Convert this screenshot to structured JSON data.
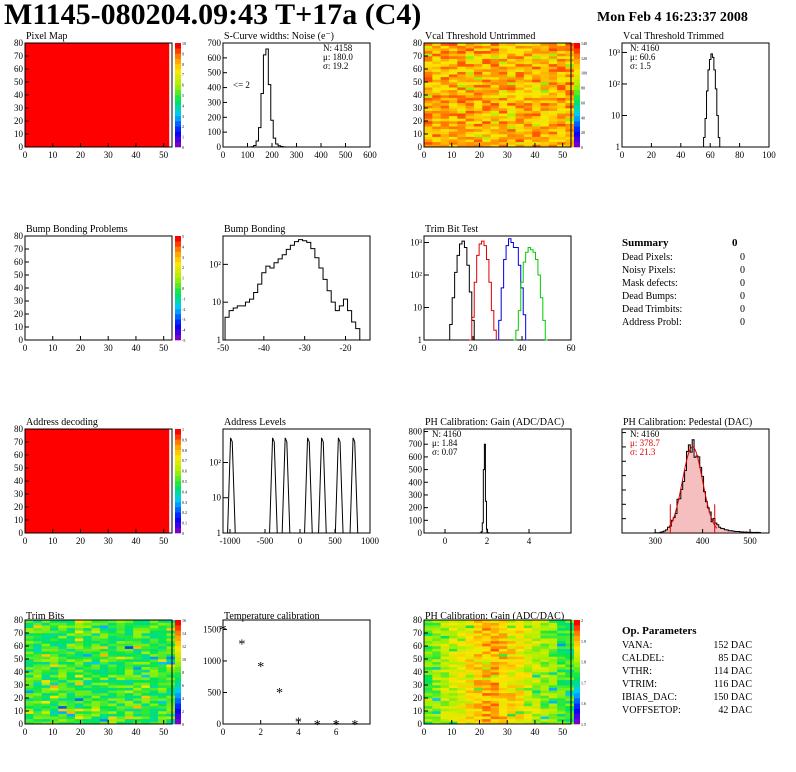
{
  "page": {
    "title": "M1145-080204.09:43 T+17a (C4)",
    "date": "Mon Feb  4 16:23:37 2008"
  },
  "colors": {
    "red": "#ff0000",
    "hist_line": "#000000",
    "trim_red": "#e00000",
    "trim_blue": "#0000e0",
    "trim_green": "#00cc00",
    "fit_red": "#dd0000"
  },
  "chart_data": [
    {
      "id": "pixel_map",
      "type": "heatmap",
      "title": "Pixel Map",
      "fill": "uniform-max",
      "x_ticks": [
        "0",
        "10",
        "20",
        "30",
        "40",
        "50"
      ],
      "y_ticks": [
        "0",
        "10",
        "20",
        "30",
        "40",
        "50",
        "60",
        "70",
        "80"
      ],
      "z_ticks": [
        "0",
        "1",
        "2",
        "3",
        "4",
        "5",
        "6",
        "7",
        "8",
        "9",
        "10"
      ]
    },
    {
      "id": "scurve",
      "type": "histogram",
      "title": "S-Curve widths: Noise (e⁻)",
      "x_ticks": [
        "0",
        "100",
        "200",
        "300",
        "400",
        "500",
        "600"
      ],
      "y_ticks": [
        "0",
        "100",
        "200",
        "300",
        "400",
        "500",
        "600",
        "700"
      ],
      "xlim": [
        0,
        600
      ],
      "ylim": [
        0,
        700
      ],
      "x": [
        120,
        130,
        140,
        150,
        160,
        170,
        180,
        190,
        200,
        210,
        220,
        230,
        240,
        250
      ],
      "values": [
        2,
        10,
        40,
        130,
        360,
        620,
        660,
        420,
        180,
        60,
        20,
        8,
        3,
        1
      ],
      "stats": [
        "N: 4158",
        "μ: 180.0",
        "σ: 19.2"
      ],
      "annotation": "<= 2"
    },
    {
      "id": "vcal_untrimmed",
      "type": "heatmap",
      "title": "Vcal Threshold Untrimmed",
      "fill": "noisy-orange",
      "x_ticks": [
        "0",
        "10",
        "20",
        "30",
        "40",
        "50"
      ],
      "y_ticks": [
        "0",
        "10",
        "20",
        "30",
        "40",
        "50",
        "60",
        "70",
        "80"
      ],
      "z_ticks": [
        "0",
        "20",
        "40",
        "60",
        "80",
        "100",
        "120",
        "140"
      ]
    },
    {
      "id": "vcal_trimmed",
      "type": "histogram",
      "title": "Vcal Threshold Trimmed",
      "log_y": true,
      "x_ticks": [
        "0",
        "20",
        "40",
        "60",
        "80",
        "100"
      ],
      "y_ticks": [
        "1",
        "10",
        "10²",
        "10³"
      ],
      "xlim": [
        0,
        100
      ],
      "x": [
        56,
        57,
        58,
        59,
        60,
        61,
        62,
        63,
        64,
        65,
        66,
        67
      ],
      "values": [
        2,
        8,
        60,
        280,
        600,
        900,
        700,
        280,
        70,
        10,
        2,
        1
      ],
      "stats": [
        "N: 4160",
        "μ: 60.6",
        "σ:  1.5"
      ]
    },
    {
      "id": "bump_problems",
      "type": "heatmap",
      "title": "Bump Bonding Problems",
      "fill": "empty",
      "x_ticks": [
        "0",
        "10",
        "20",
        "30",
        "40",
        "50"
      ],
      "y_ticks": [
        "0",
        "10",
        "20",
        "30",
        "40",
        "50",
        "60",
        "70",
        "80"
      ],
      "z_ticks": [
        "-5",
        "-4",
        "-3",
        "-2",
        "-1",
        "0",
        "1",
        "2",
        "3",
        "4",
        "5"
      ]
    },
    {
      "id": "bump_bonding",
      "type": "histogram",
      "title": "Bump Bonding",
      "log_y": true,
      "x_ticks": [
        "-50",
        "-40",
        "-30",
        "-20"
      ],
      "y_ticks": [
        "1",
        "10",
        "10²"
      ],
      "xlim": [
        -50,
        -14
      ],
      "x": [
        -49,
        -48,
        -47,
        -46,
        -45,
        -44,
        -43,
        -42,
        -41,
        -40,
        -39,
        -38,
        -37,
        -36,
        -35,
        -34,
        -33,
        -32,
        -31,
        -30,
        -29,
        -28,
        -27,
        -26,
        -25,
        -24,
        -23,
        -22,
        -21,
        -20,
        -19,
        -18,
        -17,
        -16
      ],
      "values": [
        4,
        6,
        7,
        8,
        8,
        10,
        12,
        18,
        30,
        60,
        90,
        80,
        110,
        140,
        180,
        250,
        320,
        400,
        450,
        420,
        380,
        260,
        150,
        80,
        40,
        20,
        10,
        6,
        8,
        12,
        6,
        3,
        2,
        1
      ]
    },
    {
      "id": "trim_bit",
      "type": "histogram",
      "title": "Trim Bit Test",
      "log_y": true,
      "x_ticks": [
        "0",
        "20",
        "40",
        "60"
      ],
      "y_ticks": [
        "1",
        "10",
        "10²",
        "10³"
      ],
      "xlim": [
        0,
        60
      ],
      "series": [
        {
          "color": "#000000",
          "x": [
            10,
            11,
            12,
            13,
            14,
            15,
            16,
            17,
            18,
            19,
            20,
            21
          ],
          "values": [
            1,
            3,
            20,
            120,
            400,
            900,
            1100,
            700,
            200,
            30,
            4,
            1
          ]
        },
        {
          "color": "#e00000",
          "x": [
            19,
            20,
            21,
            22,
            23,
            24,
            25,
            26,
            27,
            28,
            29,
            30
          ],
          "values": [
            1,
            5,
            60,
            400,
            900,
            1100,
            800,
            300,
            60,
            8,
            2,
            1
          ]
        },
        {
          "color": "#0000e0",
          "x": [
            30,
            31,
            32,
            33,
            34,
            35,
            36,
            37,
            38,
            39,
            40,
            41,
            42
          ],
          "values": [
            1,
            4,
            40,
            300,
            800,
            1300,
            1000,
            700,
            700,
            200,
            40,
            6,
            1
          ]
        },
        {
          "color": "#00cc00",
          "x": [
            37,
            38,
            39,
            40,
            41,
            42,
            43,
            44,
            45,
            46,
            47,
            48,
            49,
            50
          ],
          "values": [
            1,
            2,
            8,
            60,
            250,
            500,
            700,
            600,
            500,
            300,
            100,
            20,
            4,
            1
          ]
        }
      ]
    },
    {
      "id": "address_decoding",
      "type": "heatmap",
      "title": "Address decoding",
      "fill": "uniform-max",
      "x_ticks": [
        "0",
        "10",
        "20",
        "30",
        "40",
        "50"
      ],
      "y_ticks": [
        "0",
        "10",
        "20",
        "30",
        "40",
        "50",
        "60",
        "70",
        "80"
      ],
      "z_ticks": [
        "0",
        "0.1",
        "0.2",
        "0.3",
        "0.4",
        "0.5",
        "0.6",
        "0.7",
        "0.8",
        "0.9",
        "1"
      ]
    },
    {
      "id": "address_levels",
      "type": "histogram",
      "title": "Address Levels",
      "log_y": true,
      "x_ticks": [
        "-1000",
        "-500",
        "0",
        "500",
        "1000"
      ],
      "y_ticks": [
        "1",
        "10",
        "10²"
      ],
      "xlim": [
        -1100,
        1000
      ],
      "peaks": [
        -980,
        -380,
        -200,
        120,
        320,
        560,
        770
      ],
      "peak_heights": [
        500,
        500,
        500,
        500,
        500,
        500,
        500
      ]
    },
    {
      "id": "ph_gain",
      "type": "histogram",
      "title": "PH Calibration: Gain (ADC/DAC)",
      "x_ticks": [
        "0",
        "2",
        "4"
      ],
      "y_ticks": [
        "0",
        "100",
        "200",
        "300",
        "400",
        "500",
        "600",
        "700",
        "800"
      ],
      "xlim": [
        -1,
        6
      ],
      "ylim": [
        0,
        820
      ],
      "x": [
        1.7,
        1.75,
        1.8,
        1.85,
        1.9,
        1.95,
        2.0,
        2.05
      ],
      "values": [
        2,
        10,
        80,
        500,
        700,
        250,
        30,
        3
      ],
      "stats": [
        "N: 4160",
        "μ: 1.84",
        "σ: 0.07"
      ]
    },
    {
      "id": "ph_pedestal",
      "type": "histogram",
      "title": "PH Calibration: Pedestal (DAC)",
      "x_ticks": [
        "300",
        "400",
        "500"
      ],
      "y_ticks": [
        "0",
        "20",
        "40",
        "60",
        "80",
        "100",
        "120",
        "140"
      ],
      "xlim": [
        230,
        540
      ],
      "ylim": [
        0,
        145
      ],
      "stats": [
        "N: 4160",
        "μ: 378.7",
        "σ: 21.3"
      ]
    },
    {
      "id": "trim_bits",
      "type": "heatmap",
      "title": "Trim Bits",
      "fill": "noisy-green",
      "x_ticks": [
        "0",
        "10",
        "20",
        "30",
        "40",
        "50"
      ],
      "y_ticks": [
        "0",
        "10",
        "20",
        "30",
        "40",
        "50",
        "60",
        "70",
        "80"
      ],
      "z_ticks": [
        "0",
        "2",
        "4",
        "6",
        "8",
        "10",
        "12",
        "14",
        "16"
      ]
    },
    {
      "id": "temperature",
      "type": "scatter",
      "title": "Temperature calibration",
      "x_ticks": [
        "0",
        "2",
        "4",
        "6"
      ],
      "y_ticks": [
        "0",
        "500",
        "1000",
        "1500"
      ],
      "xlim": [
        0,
        7.8
      ],
      "ylim": [
        0,
        1650
      ],
      "x": [
        0,
        1,
        2,
        3,
        4,
        5,
        6,
        7
      ],
      "values": [
        1510,
        1280,
        920,
        510,
        40,
        0,
        0,
        0
      ]
    },
    {
      "id": "ph_gain_map",
      "type": "heatmap",
      "title": "PH Calibration: Gain (ADC/DAC)",
      "fill": "noisy-red",
      "x_ticks": [
        "0",
        "10",
        "20",
        "30",
        "40",
        "50"
      ],
      "y_ticks": [
        "0",
        "10",
        "20",
        "30",
        "40",
        "50",
        "60",
        "70",
        "80"
      ],
      "z_ticks": [
        "1.5",
        "1.6",
        "1.7",
        "1.8",
        "1.9",
        "2"
      ]
    }
  ],
  "summary": {
    "title": "Summary",
    "value": "0",
    "rows": [
      {
        "label": "Dead Pixels:",
        "value": "0"
      },
      {
        "label": "Noisy Pixels:",
        "value": "0"
      },
      {
        "label": "Mask defects:",
        "value": "0"
      },
      {
        "label": "Dead Bumps:",
        "value": "0"
      },
      {
        "label": "Dead Trimbits:",
        "value": "0"
      },
      {
        "label": "Address Probl:",
        "value": "0"
      }
    ]
  },
  "op_params": {
    "title": "Op. Parameters",
    "rows": [
      {
        "label": "VANA:",
        "value": "152 DAC"
      },
      {
        "label": "CALDEL:",
        "value": "85 DAC"
      },
      {
        "label": "VTHR:",
        "value": "114 DAC"
      },
      {
        "label": "VTRIM:",
        "value": "116 DAC"
      },
      {
        "label": "IBIAS_DAC:",
        "value": "150 DAC"
      },
      {
        "label": "VOFFSETOP:",
        "value": "42 DAC"
      }
    ]
  }
}
